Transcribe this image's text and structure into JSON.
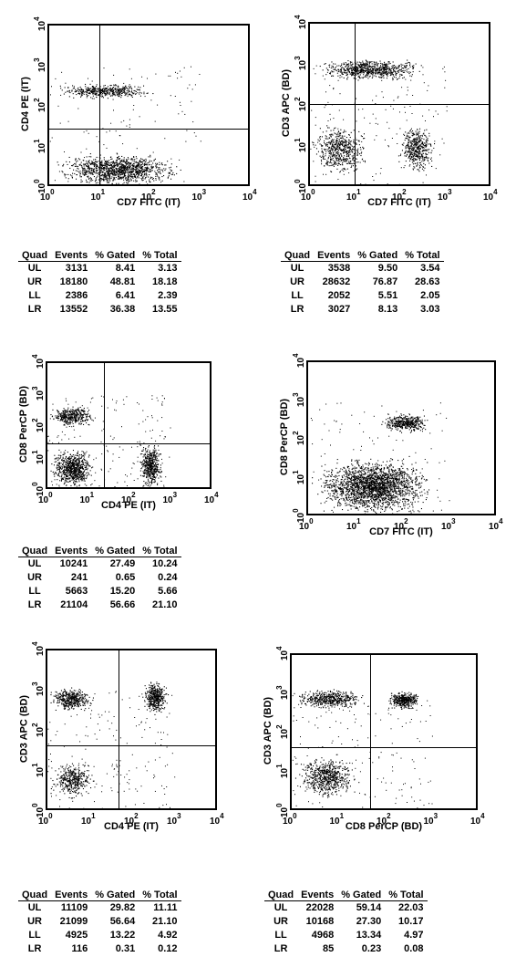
{
  "axis_ticks": [
    "10",
    "0",
    "10",
    "1",
    "10",
    "2",
    "10",
    "3",
    "10",
    "4"
  ],
  "tables_header": [
    "Quad",
    "Events",
    "% Gated",
    "% Total"
  ],
  "chart_data": [
    {
      "type": "scatter",
      "xlabel": "CD7 FITC (IT)",
      "ylabel": "CD4 PE (IT)",
      "xscale": "log",
      "yscale": "log",
      "xlim": [
        1,
        10000
      ],
      "ylim": [
        1,
        10000
      ],
      "gate": {
        "x": 10,
        "y": 25
      },
      "clusters": [
        {
          "name": "",
          "x": [
            1,
            150
          ],
          "y": [
            150,
            400
          ],
          "density": 0.9
        },
        {
          "name": "",
          "x": [
            1,
            500
          ],
          "y": [
            1,
            8
          ],
          "density": 0.9
        }
      ],
      "table": [
        {
          "quad": "UL",
          "events": "3131",
          "gated": "8.41",
          "total": "3.13"
        },
        {
          "quad": "UR",
          "events": "18180",
          "gated": "48.81",
          "total": "18.18"
        },
        {
          "quad": "LL",
          "events": "2386",
          "gated": "6.41",
          "total": "2.39"
        },
        {
          "quad": "LR",
          "events": "13552",
          "gated": "36.38",
          "total": "13.55"
        }
      ]
    },
    {
      "type": "scatter",
      "xlabel": "CD7 FITC (IT)",
      "ylabel": "CD3 APC (BD)",
      "xscale": "log",
      "yscale": "log",
      "xlim": [
        1,
        10000
      ],
      "ylim": [
        1,
        10000
      ],
      "gate": {
        "x": 10,
        "y": 100
      },
      "clusters": [
        {
          "name": "",
          "x": [
            1,
            400
          ],
          "y": [
            400,
            1500
          ],
          "density": 0.9
        },
        {
          "name": "",
          "x": [
            1,
            20
          ],
          "y": [
            2,
            40
          ],
          "density": 0.6
        },
        {
          "name": "",
          "x": [
            80,
            600
          ],
          "y": [
            2,
            40
          ],
          "density": 0.7
        }
      ],
      "table": [
        {
          "quad": "UL",
          "events": "3538",
          "gated": "9.50",
          "total": "3.54"
        },
        {
          "quad": "UR",
          "events": "28632",
          "gated": "76.87",
          "total": "28.63"
        },
        {
          "quad": "LL",
          "events": "2052",
          "gated": "5.51",
          "total": "2.05"
        },
        {
          "quad": "LR",
          "events": "3027",
          "gated": "8.13",
          "total": "3.03"
        }
      ]
    },
    {
      "type": "scatter",
      "xlabel": "CD4 PE (IT)",
      "ylabel": "CD8 PerCP (BD)",
      "xscale": "log",
      "yscale": "log",
      "xlim": [
        1,
        10000
      ],
      "ylim": [
        1,
        10000
      ],
      "gate": {
        "x": 25,
        "y": 25
      },
      "clusters": [
        {
          "name": "",
          "x": [
            1,
            15
          ],
          "y": [
            100,
            500
          ],
          "density": 0.8
        },
        {
          "name": "",
          "x": [
            1,
            15
          ],
          "y": [
            1,
            25
          ],
          "density": 0.8
        },
        {
          "name": "",
          "x": [
            150,
            600
          ],
          "y": [
            1,
            40
          ],
          "density": 0.9
        }
      ],
      "table": [
        {
          "quad": "UL",
          "events": "10241",
          "gated": "27.49",
          "total": "10.24"
        },
        {
          "quad": "UR",
          "events": "241",
          "gated": "0.65",
          "total": "0.24"
        },
        {
          "quad": "LL",
          "events": "5663",
          "gated": "15.20",
          "total": "5.66"
        },
        {
          "quad": "LR",
          "events": "21104",
          "gated": "56.66",
          "total": "21.10"
        }
      ]
    },
    {
      "type": "scatter",
      "xlabel": "CD7 FITC (IT)",
      "ylabel": "CD8 PerCP (BD)",
      "xscale": "log",
      "yscale": "log",
      "xlim": [
        1,
        10000
      ],
      "ylim": [
        1,
        10000
      ],
      "gate": null,
      "clusters": [
        {
          "name": "",
          "x": [
            30,
            400
          ],
          "y": [
            150,
            500
          ],
          "density": 0.8
        },
        {
          "name": "",
          "x": [
            1,
            500
          ],
          "y": [
            1,
            40
          ],
          "density": 0.95
        }
      ],
      "table": null
    },
    {
      "type": "scatter",
      "xlabel": "CD4 PE (IT)",
      "ylabel": "CD3 APC (BD)",
      "xscale": "log",
      "yscale": "log",
      "xlim": [
        1,
        10000
      ],
      "ylim": [
        1,
        10000
      ],
      "gate": {
        "x": 50,
        "y": 40
      },
      "clusters": [
        {
          "name": "",
          "x": [
            1,
            12
          ],
          "y": [
            300,
            1300
          ],
          "density": 0.85
        },
        {
          "name": "",
          "x": [
            150,
            700
          ],
          "y": [
            250,
            2000
          ],
          "density": 0.85
        },
        {
          "name": "",
          "x": [
            1,
            15
          ],
          "y": [
            2,
            20
          ],
          "density": 0.6
        }
      ],
      "table": [
        {
          "quad": "UL",
          "events": "11109",
          "gated": "29.82",
          "total": "11.11"
        },
        {
          "quad": "UR",
          "events": "21099",
          "gated": "56.64",
          "total": "21.10"
        },
        {
          "quad": "LL",
          "events": "4925",
          "gated": "13.22",
          "total": "4.92"
        },
        {
          "quad": "LR",
          "events": "116",
          "gated": "0.31",
          "total": "0.12"
        }
      ]
    },
    {
      "type": "scatter",
      "xlabel": "CD8 PerCP (BD)",
      "ylabel": "CD3 APC (BD)",
      "xscale": "log",
      "yscale": "log",
      "xlim": [
        1,
        10000
      ],
      "ylim": [
        1,
        10000
      ],
      "gate": {
        "x": 50,
        "y": 40
      },
      "clusters": [
        {
          "name": "",
          "x": [
            1,
            40
          ],
          "y": [
            400,
            1500
          ],
          "density": 0.95
        },
        {
          "name": "",
          "x": [
            100,
            600
          ],
          "y": [
            400,
            1300
          ],
          "density": 0.8
        },
        {
          "name": "",
          "x": [
            1,
            30
          ],
          "y": [
            2,
            30
          ],
          "density": 0.65
        }
      ],
      "table": [
        {
          "quad": "UL",
          "events": "22028",
          "gated": "59.14",
          "total": "22.03"
        },
        {
          "quad": "UR",
          "events": "10168",
          "gated": "27.30",
          "total": "10.17"
        },
        {
          "quad": "LL",
          "events": "4968",
          "gated": "13.34",
          "total": "4.97"
        },
        {
          "quad": "LR",
          "events": "85",
          "gated": "0.23",
          "total": "0.08"
        }
      ]
    }
  ]
}
